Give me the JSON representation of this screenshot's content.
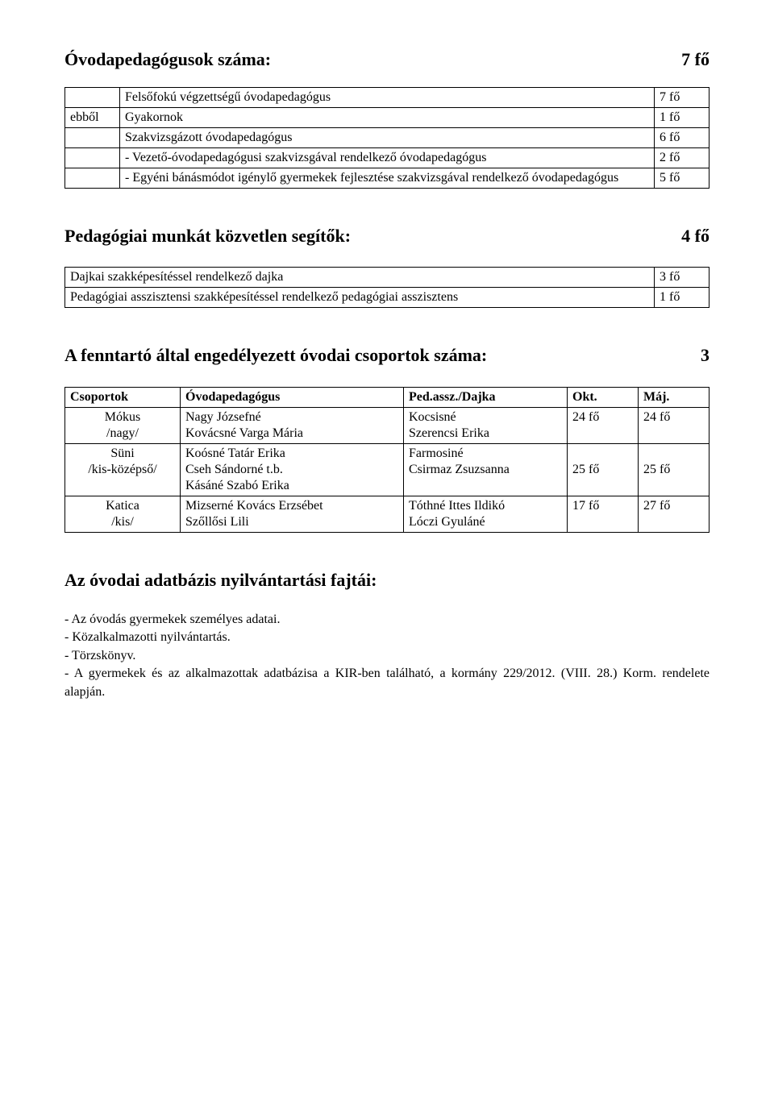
{
  "title": {
    "label": "Óvodapedagógusok száma:",
    "value": "7 fő"
  },
  "table1": {
    "rows": [
      {
        "c0": "",
        "c1": "Felsőfokú végzettségű óvodapedagógus",
        "c2": "7 fő"
      },
      {
        "c0": "ebből",
        "c1": "Gyakornok",
        "c2": "1 fő"
      },
      {
        "c0": "",
        "c1": "Szakvizsgázott óvodapedagógus",
        "c2": "6 fő"
      },
      {
        "c0": "",
        "c1": "- Vezető-óvodapedagógusi szakvizsgával rendelkező óvodapedagógus",
        "c2": "2 fő"
      },
      {
        "c0": "",
        "c1": "- Egyéni bánásmódot igénylő gyermekek fejlesztése szakvizsgával rendelkező óvodapedagógus",
        "c2": "5 fő"
      }
    ]
  },
  "section2": {
    "label": "Pedagógiai munkát közvetlen segítők:",
    "value": "4 fő"
  },
  "table2": {
    "rows": [
      {
        "c0": "Dajkai szakképesítéssel rendelkező dajka",
        "c1": "3 fő"
      },
      {
        "c0": "Pedagógiai asszisztensi szakképesítéssel rendelkező pedagógiai asszisztens",
        "c1": "1 fő"
      }
    ]
  },
  "section3": {
    "label": "A fenntartó által engedélyezett óvodai csoportok száma:",
    "value": "3"
  },
  "table3": {
    "header": {
      "c0": "Csoportok",
      "c1": "Óvodapedagógus",
      "c2": "Ped.assz./Dajka",
      "c3": "Okt.",
      "c4": "Máj."
    },
    "rows": [
      {
        "c0": "Mókus\n/nagy/",
        "c1": "Nagy Józsefné\nKovácsné Varga Mária",
        "c2": "Kocsisné\nSzerencsi Erika",
        "c3": "24 fő",
        "c4": "24 fő"
      },
      {
        "c0": "Süni\n/kis-középső/",
        "c1": "Koósné Tatár Erika\nCseh Sándorné t.b.\nKásáné Szabó Erika",
        "c2": "Farmosiné\nCsirmaz Zsuzsanna",
        "c3": "25 fő",
        "c4": "25 fő"
      },
      {
        "c0": "Katica\n/kis/",
        "c1": "Mizserné Kovács Erzsébet\nSzőllősi Lili",
        "c2": "Tóthné Ittes Ildikó\nLóczi Gyuláné",
        "c3": "17 fő",
        "c4": "27 fő"
      }
    ]
  },
  "section4": {
    "label": "Az óvodai adatbázis nyilvántartási fajtái:"
  },
  "list": [
    "- Az óvodás gyermekek személyes adatai.",
    "- Közalkalmazotti nyilvántartás.",
    "- Törzskönyv.",
    "- A gyermekek és az alkalmazottak adatbázisa a KIR-ben található, a kormány 229/2012. (VIII. 28.) Korm. rendelete alapján."
  ]
}
